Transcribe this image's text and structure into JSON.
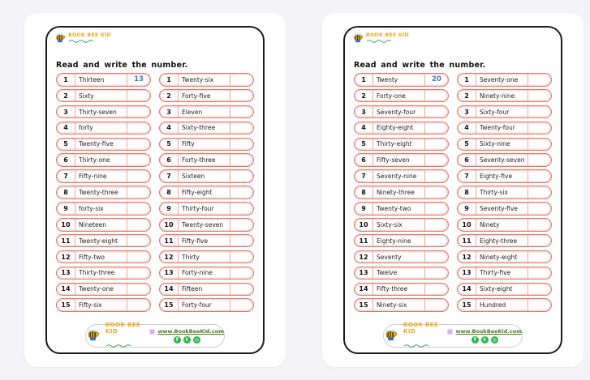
{
  "brand": {
    "name": "Book Bee Kid"
  },
  "pages": [
    {
      "title": "Read and write the number.",
      "columns": [
        {
          "rows": [
            {
              "num": "1",
              "word": "Thirteen",
              "answer": "13"
            },
            {
              "num": "2",
              "word": "Sixty",
              "answer": ""
            },
            {
              "num": "3",
              "word": "Thirty-seven",
              "answer": ""
            },
            {
              "num": "4",
              "word": "forty",
              "answer": ""
            },
            {
              "num": "5",
              "word": "Twenty-five",
              "answer": ""
            },
            {
              "num": "6",
              "word": "Thirty-one",
              "answer": ""
            },
            {
              "num": "7",
              "word": "Fifty-nine",
              "answer": ""
            },
            {
              "num": "8",
              "word": "Twenty-three",
              "answer": ""
            },
            {
              "num": "9",
              "word": "forty-six",
              "answer": ""
            },
            {
              "num": "10",
              "word": "Nineteen",
              "answer": ""
            },
            {
              "num": "11",
              "word": "Twenty-eight",
              "answer": ""
            },
            {
              "num": "12",
              "word": "Fifty-two",
              "answer": ""
            },
            {
              "num": "13",
              "word": "Thirty-three",
              "answer": ""
            },
            {
              "num": "14",
              "word": "Twenty-one",
              "answer": ""
            },
            {
              "num": "15",
              "word": "Fifty-six",
              "answer": ""
            }
          ]
        },
        {
          "rows": [
            {
              "num": "1",
              "word": "Twenty-six",
              "answer": ""
            },
            {
              "num": "2",
              "word": "Forty-five",
              "answer": ""
            },
            {
              "num": "3",
              "word": "Eleven",
              "answer": ""
            },
            {
              "num": "4",
              "word": "Sixty-three",
              "answer": ""
            },
            {
              "num": "5",
              "word": "Fifty",
              "answer": ""
            },
            {
              "num": "6",
              "word": "Forty-three",
              "answer": ""
            },
            {
              "num": "7",
              "word": "Sixteen",
              "answer": ""
            },
            {
              "num": "8",
              "word": "Fifty-eight",
              "answer": ""
            },
            {
              "num": "9",
              "word": "Thirty-four",
              "answer": ""
            },
            {
              "num": "10",
              "word": "Twenty-seven",
              "answer": ""
            },
            {
              "num": "11",
              "word": "Fifty-five",
              "answer": ""
            },
            {
              "num": "12",
              "word": "Thirty",
              "answer": ""
            },
            {
              "num": "13",
              "word": "Forty-nine",
              "answer": ""
            },
            {
              "num": "14",
              "word": "Fifteen",
              "answer": ""
            },
            {
              "num": "15",
              "word": "Forty-four",
              "answer": ""
            }
          ]
        }
      ]
    },
    {
      "title": "Read and write the number.",
      "columns": [
        {
          "rows": [
            {
              "num": "1",
              "word": "Twenty",
              "answer": "20"
            },
            {
              "num": "2",
              "word": "Forty-one",
              "answer": ""
            },
            {
              "num": "3",
              "word": "Seventy-four",
              "answer": ""
            },
            {
              "num": "4",
              "word": "Eighty-eight",
              "answer": ""
            },
            {
              "num": "5",
              "word": "Thirty-eight",
              "answer": ""
            },
            {
              "num": "6",
              "word": "Fifty-seven",
              "answer": ""
            },
            {
              "num": "7",
              "word": "Seventy-nine",
              "answer": ""
            },
            {
              "num": "8",
              "word": "Ninety-three",
              "answer": ""
            },
            {
              "num": "9",
              "word": "Twenty-two",
              "answer": ""
            },
            {
              "num": "10",
              "word": "Sixty-six",
              "answer": ""
            },
            {
              "num": "11",
              "word": "Eighty-nine",
              "answer": ""
            },
            {
              "num": "12",
              "word": "Seventy",
              "answer": ""
            },
            {
              "num": "13",
              "word": "Twelve",
              "answer": ""
            },
            {
              "num": "14",
              "word": "Fifty-three",
              "answer": ""
            },
            {
              "num": "15",
              "word": "Ninety-six",
              "answer": ""
            }
          ]
        },
        {
          "rows": [
            {
              "num": "1",
              "word": "Seventy-one",
              "answer": ""
            },
            {
              "num": "2",
              "word": "Ninety-nine",
              "answer": ""
            },
            {
              "num": "3",
              "word": "Sixty-four",
              "answer": ""
            },
            {
              "num": "4",
              "word": "Twenty-four",
              "answer": ""
            },
            {
              "num": "5",
              "word": "Sixty-nine",
              "answer": ""
            },
            {
              "num": "6",
              "word": "Seventy-seven",
              "answer": ""
            },
            {
              "num": "7",
              "word": "Eighty-five",
              "answer": ""
            },
            {
              "num": "8",
              "word": "Thirty-six",
              "answer": ""
            },
            {
              "num": "9",
              "word": "Seventy-five",
              "answer": ""
            },
            {
              "num": "10",
              "word": "Ninety",
              "answer": ""
            },
            {
              "num": "11",
              "word": "Eighty-three",
              "answer": ""
            },
            {
              "num": "12",
              "word": "Ninety-eight",
              "answer": ""
            },
            {
              "num": "13",
              "word": "Thirty-five",
              "answer": ""
            },
            {
              "num": "14",
              "word": "Sixty-eight",
              "answer": ""
            },
            {
              "num": "15",
              "word": "Hundred",
              "answer": ""
            }
          ]
        }
      ]
    }
  ],
  "footer": {
    "brand": "Book Bee Kid",
    "url": "www.BookBeeKid.com",
    "socials": [
      {
        "name": "facebook",
        "glyph": "f"
      },
      {
        "name": "twitter",
        "glyph": "t"
      },
      {
        "name": "instagram",
        "glyph": "◎"
      }
    ]
  },
  "colors": {
    "row_border": "#e8746a",
    "answer_blue": "#3c78d8",
    "brand_orange": "#f5a31a",
    "social_green": "#2eb84c"
  }
}
